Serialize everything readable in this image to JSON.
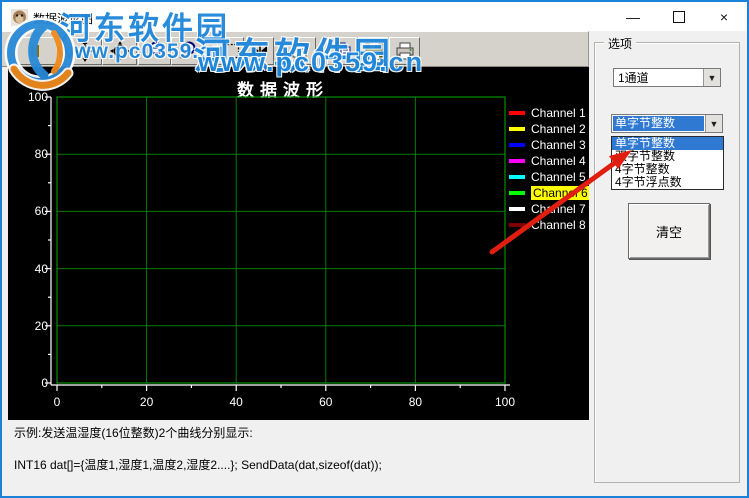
{
  "window": {
    "title": "数据波形图",
    "controls": {
      "minimize": "—",
      "maximize": "",
      "close": "×"
    }
  },
  "toolbar": {
    "buttons": [
      "pause",
      "pan",
      "zoom-window",
      "zoom-out",
      "zoom-in",
      "box-zoom",
      "cursors",
      "properties",
      "copy",
      "save",
      "print"
    ]
  },
  "watermark": {
    "site_name": "河东软件园",
    "site_url": "www.pc0359.cn",
    "color": "#1d86da"
  },
  "chart_data": {
    "type": "line",
    "title": "数据波形",
    "xlabel": "",
    "ylabel": "",
    "xlim": [
      0,
      100
    ],
    "ylim": [
      0,
      100
    ],
    "x_ticks": [
      0,
      20,
      40,
      60,
      80,
      100
    ],
    "y_ticks": [
      0,
      20,
      40,
      60,
      80,
      100
    ],
    "minor_tick_step": 10,
    "grid": true,
    "background": "#000000",
    "grid_color": "#007d00",
    "axis_color": "#ffffff",
    "legend_position": "right",
    "highlight_color": "#ffff00",
    "series": [
      {
        "name": "Channel 1",
        "color": "#ff0000",
        "values": []
      },
      {
        "name": "Channel 2",
        "color": "#ffff00",
        "values": []
      },
      {
        "name": "Channel 3",
        "color": "#0000ff",
        "values": []
      },
      {
        "name": "Channel 4",
        "color": "#ff00ff",
        "values": []
      },
      {
        "name": "Channel 5",
        "color": "#00ffff",
        "values": []
      },
      {
        "name": "Channel 6",
        "color": "#00ff00",
        "values": [],
        "highlighted": true
      },
      {
        "name": "Channel 7",
        "color": "#ffffff",
        "values": []
      },
      {
        "name": "Channel 8",
        "color": "#800000",
        "values": []
      }
    ]
  },
  "right_panel": {
    "group_label": "选项",
    "channel_combo": {
      "value": "1通道"
    },
    "datatype_combo": {
      "value": "单字节整数",
      "selected_index": 0,
      "options": [
        "单字节整数",
        "双字节整数",
        "4字节整数",
        "4字节浮点数"
      ]
    },
    "clear_button": "清空"
  },
  "footer": {
    "line1": "示例:发送温湿度(16位整数)2个曲线分别显示:",
    "line2": "INT16 dat[]={温度1,湿度1,温度2,湿度2....}; SendData(dat,sizeof(dat));"
  },
  "annotation": {
    "arrow_color": "#e01e10"
  }
}
